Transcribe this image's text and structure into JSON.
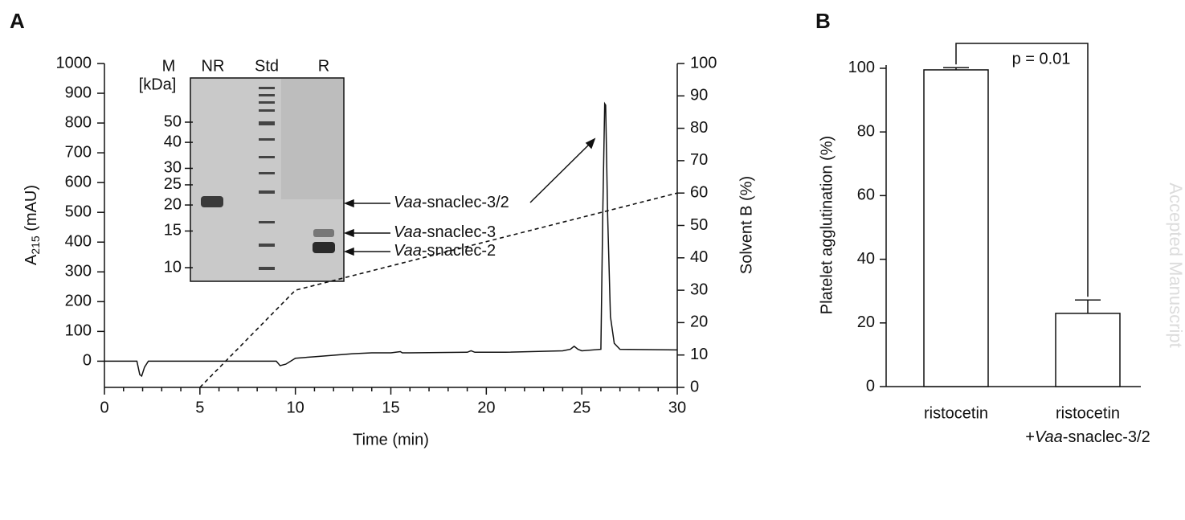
{
  "chart_data": [
    {
      "type": "line",
      "panel": "A",
      "xlabel": "Time (min)",
      "ylabel": [
        "A",
        "215",
        " (mAU)"
      ],
      "y2label": "Solvent B (%)",
      "xlim": [
        0,
        30
      ],
      "xticks": [
        0,
        5,
        10,
        15,
        20,
        25,
        30
      ],
      "ylim": [
        -88,
        1000
      ],
      "yticks": [
        0,
        100,
        200,
        300,
        400,
        500,
        600,
        700,
        800,
        900,
        1000
      ],
      "y2lim": [
        0,
        100
      ],
      "y2ticks": [
        0,
        10,
        20,
        30,
        40,
        50,
        60,
        70,
        80,
        90,
        100
      ],
      "series": [
        {
          "color": "#111111",
          "x": [
            0,
            1.7,
            1.85,
            1.95,
            2.1,
            2.3,
            9.0,
            9.2,
            9.5,
            10,
            11,
            12,
            13,
            14,
            15,
            15.5,
            15.6,
            16,
            19,
            19.2,
            19.4,
            21,
            24,
            24.4,
            24.6,
            24.8,
            25,
            26,
            26.1,
            26.2,
            26.25,
            26.35,
            26.5,
            26.7,
            27,
            30
          ],
          "values": [
            0,
            0,
            -45,
            -50,
            -20,
            0,
            0,
            -15,
            -10,
            10,
            15,
            20,
            25,
            28,
            28,
            32,
            28,
            28,
            30,
            35,
            30,
            30,
            35,
            40,
            50,
            40,
            35,
            40,
            500,
            865,
            860,
            500,
            150,
            60,
            40,
            38
          ]
        },
        {
          "color": "#111111",
          "axis": "y2",
          "dashed": true,
          "x": [
            5,
            10,
            30
          ],
          "values": [
            0,
            30,
            60
          ]
        }
      ],
      "inset": {
        "lane_labels": [
          "M",
          "NR",
          "Std",
          "R"
        ],
        "unit": "[kDa]",
        "markers": [
          50,
          40,
          30,
          25,
          20,
          15,
          10
        ],
        "bands": [
          [
            "Vaa",
            "-snaclec-3/2"
          ],
          [
            "Vaa",
            "-snaclec-3"
          ],
          [
            "Vaa",
            "-snaclec-2"
          ]
        ]
      }
    },
    {
      "type": "bar",
      "panel": "B",
      "ylabel": "Platelet agglutination (%)",
      "categories": [
        [
          "ristocetin"
        ],
        [
          "ristocetin",
          [
            "+",
            "Vaa",
            "-snaclec-3/2"
          ]
        ]
      ],
      "values": [
        99.5,
        23
      ],
      "errors": [
        0.7,
        4.2
      ],
      "color": "#ffffff",
      "ylim": [
        0,
        101
      ],
      "yticks": [
        0,
        20,
        40,
        60,
        80,
        100
      ],
      "annotation": "p = 0.01"
    }
  ],
  "watermark": "Accepted Manuscript"
}
